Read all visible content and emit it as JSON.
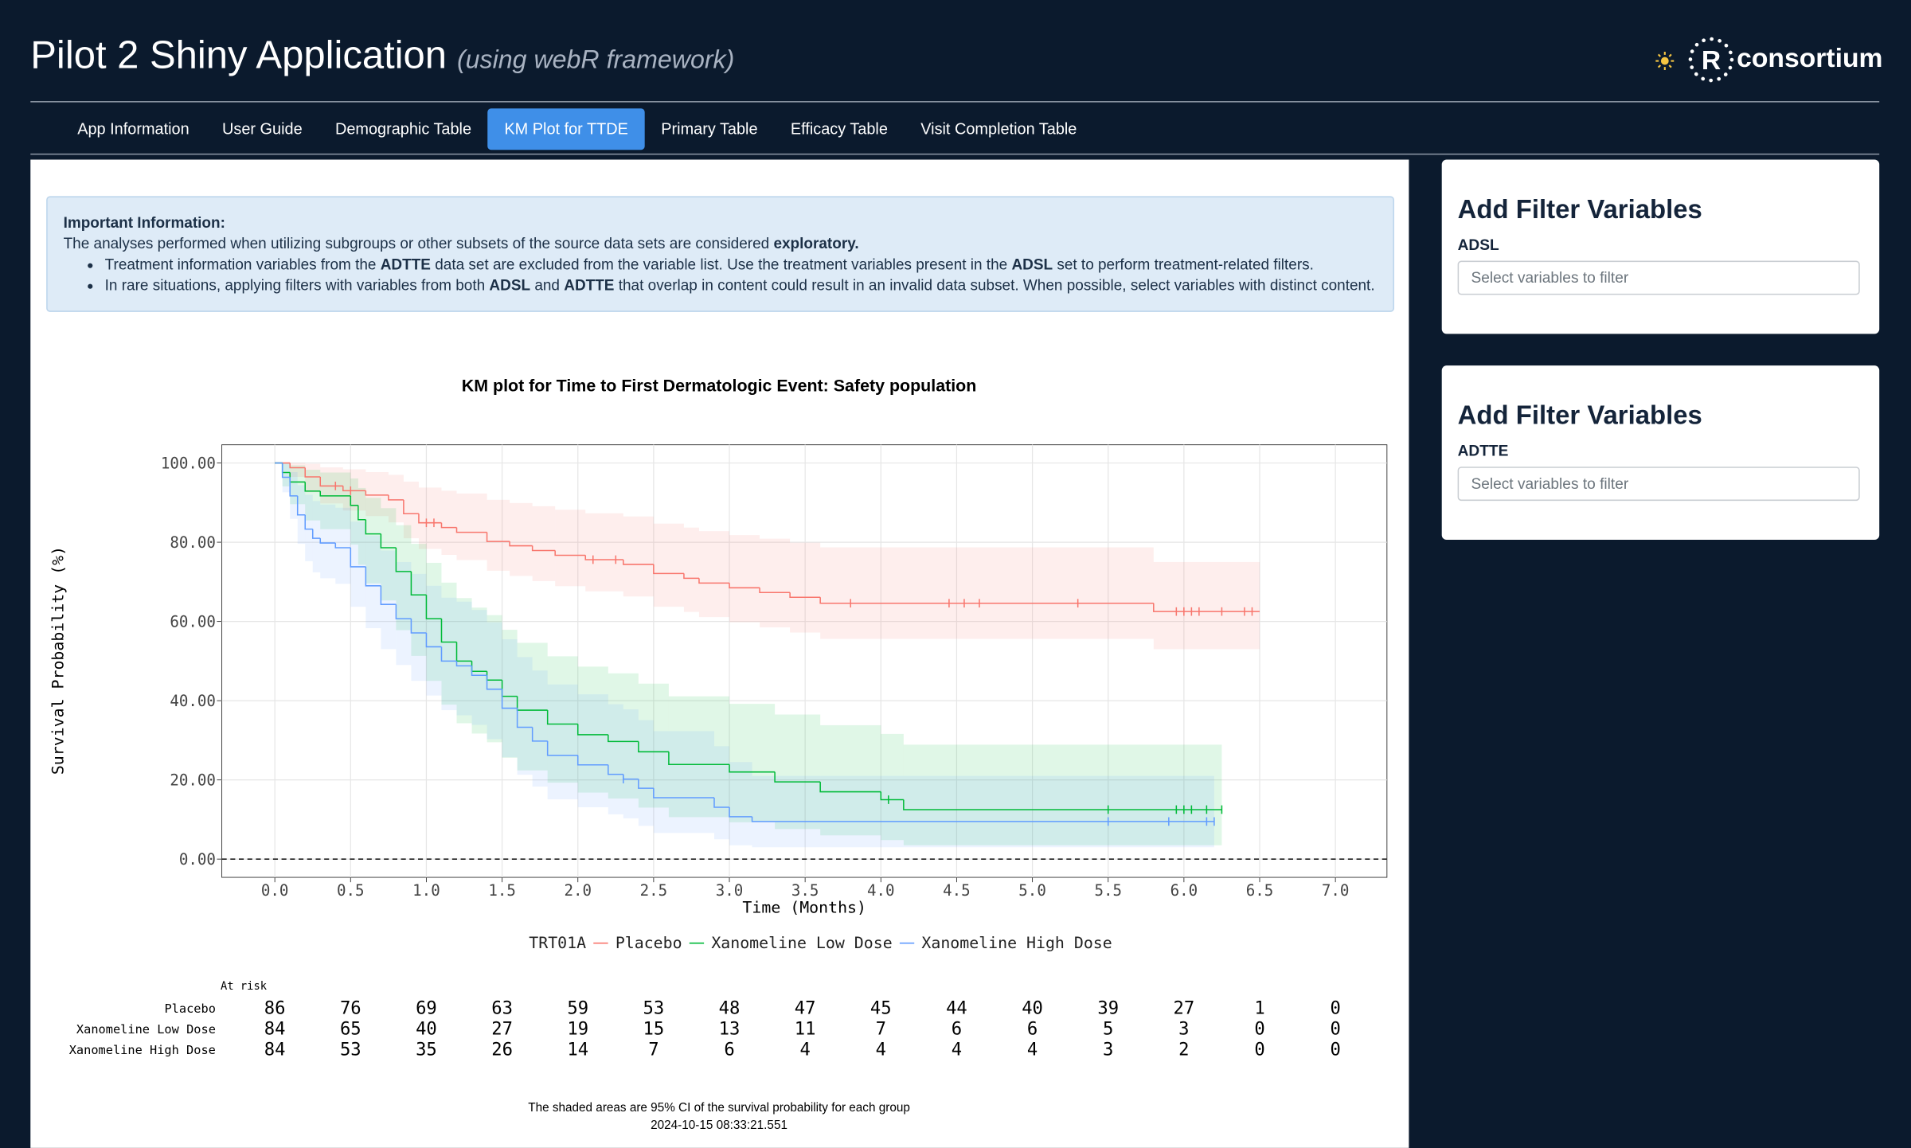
{
  "header": {
    "title": "Pilot 2 Shiny Application",
    "subtitle": "(using webR framework)",
    "logo_letter": "R",
    "logo_text": "consortium"
  },
  "nav": {
    "tabs": [
      "App Information",
      "User Guide",
      "Demographic Table",
      "KM Plot for TTDE",
      "Primary Table",
      "Efficacy Table",
      "Visit Completion Table"
    ],
    "active": 3
  },
  "info": {
    "heading": "Important Information:",
    "intro": [
      "The analyses performed when utilizing subgroups or other subsets of the source data sets are considered ",
      {
        "text": "exploratory.",
        "bold": true
      }
    ],
    "bullets": [
      [
        "Treatment information variables from the ",
        {
          "text": "ADTTE",
          "bold": true
        },
        " data set are excluded from the variable list. Use the treatment variables present in the ",
        {
          "text": "ADSL",
          "bold": true
        },
        " set to perform treatment-related filters."
      ],
      [
        "In rare situations, applying filters with variables from both ",
        {
          "text": "ADSL",
          "bold": true
        },
        " and ",
        {
          "text": "ADTTE",
          "bold": true
        },
        " that overlap in content could result in an invalid data subset. When possible, select variables with distinct content."
      ]
    ]
  },
  "chart_data": {
    "type": "km",
    "title": "KM plot for Time to First Dermatologic Event: Safety population",
    "x_label": "Time (Months)",
    "y_label": "Survival Probability (%)",
    "legend_title": "TRT01A",
    "xlim": [
      -0.35,
      7.34
    ],
    "ylim": [
      -4.6,
      104.6
    ],
    "xticks": [
      {
        "value": 0,
        "label": "0.0"
      },
      0.5,
      {
        "value": 1,
        "label": "1.0"
      },
      1.5,
      {
        "value": 2,
        "label": "2.0"
      },
      2.5,
      {
        "value": 3,
        "label": "3.0"
      },
      3.5,
      {
        "value": 4,
        "label": "4.0"
      },
      4.5,
      {
        "value": 5,
        "label": "5.0"
      },
      5.5,
      {
        "value": 6,
        "label": "6.0"
      },
      6.5,
      {
        "value": 7,
        "label": "7.0"
      }
    ],
    "yticks": [
      {
        "value": 0,
        "label": "0.00"
      },
      {
        "value": 20,
        "label": "20.00"
      },
      {
        "value": 40,
        "label": "40.00"
      },
      {
        "value": 60,
        "label": "60.00"
      },
      {
        "value": 80,
        "label": "80.00"
      },
      {
        "value": 100,
        "label": "100.00"
      }
    ],
    "grid": true,
    "hline": 0,
    "series": [
      {
        "name": "Placebo",
        "color": "#f8766d",
        "x": [
          0,
          0.1,
          0.2,
          0.3,
          0.45,
          0.6,
          0.75,
          0.85,
          0.95,
          1.1,
          1.2,
          1.4,
          1.55,
          1.7,
          1.85,
          2.05,
          2.3,
          2.5,
          2.7,
          2.8,
          3.0,
          3.2,
          3.4,
          3.6,
          5.8,
          6.5
        ],
        "values": [
          100,
          98.8,
          96.5,
          94.2,
          93,
          91.9,
          90.7,
          87.2,
          84.9,
          83.7,
          82.5,
          80.2,
          79.1,
          77.9,
          76.7,
          75.6,
          74.4,
          72.1,
          70.9,
          69.7,
          68.5,
          67.3,
          66.1,
          64.6,
          62.5,
          62.5
        ],
        "ci_upper": [
          100,
          100,
          99.8,
          98.9,
          98.4,
          97.7,
          97,
          95.3,
          93.8,
          93,
          92.3,
          90.7,
          89.9,
          89.1,
          88.2,
          87.3,
          86.5,
          84.7,
          83.7,
          82.8,
          81.8,
          80.9,
          79.9,
          78.7,
          75,
          75
        ],
        "ci_lower": [
          100,
          96.5,
          92.6,
          89.8,
          88,
          86.6,
          85,
          81,
          78.3,
          76.8,
          75.5,
          72.8,
          71.5,
          70.2,
          68.9,
          67.6,
          66.3,
          63.7,
          62.4,
          61.1,
          59.8,
          58.5,
          57.2,
          55.6,
          53,
          53
        ],
        "censor_x": [
          0.4,
          0.5,
          1.0,
          1.05,
          2.1,
          2.25,
          3.8,
          4.45,
          4.55,
          4.65,
          5.3,
          5.95,
          6.0,
          6.05,
          6.1,
          6.25,
          6.4,
          6.45
        ],
        "censor_y": [
          94.2,
          93,
          84.9,
          84.9,
          75.6,
          75.6,
          64.6,
          64.6,
          64.6,
          64.6,
          64.6,
          62.5,
          62.5,
          62.5,
          62.5,
          62.5,
          62.5,
          62.5
        ]
      },
      {
        "name": "Xanomeline Low Dose",
        "color": "#00ba38",
        "x": [
          0,
          0.05,
          0.1,
          0.2,
          0.3,
          0.5,
          0.55,
          0.6,
          0.7,
          0.8,
          0.9,
          1.0,
          1.1,
          1.2,
          1.3,
          1.4,
          1.5,
          1.6,
          1.8,
          2.0,
          2.2,
          2.4,
          2.6,
          3.0,
          3.3,
          3.6,
          4.0,
          4.15,
          6.25
        ],
        "values": [
          100,
          97.6,
          95.2,
          92.9,
          91.7,
          89.3,
          85.7,
          82.1,
          78.6,
          72.6,
          66.7,
          60.7,
          54.8,
          50,
          47.4,
          45.2,
          41.1,
          37.6,
          34.1,
          31.4,
          29.7,
          27.1,
          23.9,
          22,
          19.5,
          17,
          15,
          12.5,
          12.5
        ],
        "ci_upper": [
          100,
          100,
          99.4,
          98.3,
          97.6,
          96.1,
          93.7,
          91.2,
          88.6,
          84.3,
          79.6,
          74.8,
          69.8,
          65.9,
          63.5,
          61.6,
          57.9,
          54.6,
          51.2,
          48.6,
          46.9,
          44.3,
          41.1,
          39.2,
          36.5,
          33.8,
          31.6,
          28.9,
          25
        ],
        "ci_lower": [
          100,
          94.1,
          89.6,
          85.5,
          83.3,
          79.4,
          74.3,
          69.6,
          65.3,
          57.8,
          51.3,
          45,
          39,
          34.3,
          31.7,
          29.5,
          25.6,
          22.4,
          19.3,
          16.8,
          15.3,
          13,
          10.6,
          9.3,
          7.6,
          6,
          4.8,
          3.5,
          3.5
        ],
        "censor_x": [
          4.05,
          5.5,
          5.95,
          6.0,
          6.05,
          6.15,
          6.25
        ],
        "censor_y": [
          15,
          12.5,
          12.5,
          12.5,
          12.5,
          12.5,
          12.5
        ]
      },
      {
        "name": "Xanomeline High Dose",
        "color": "#619cff",
        "x": [
          0,
          0.05,
          0.1,
          0.15,
          0.2,
          0.25,
          0.3,
          0.4,
          0.5,
          0.6,
          0.7,
          0.8,
          0.9,
          1.0,
          1.1,
          1.2,
          1.3,
          1.4,
          1.5,
          1.6,
          1.7,
          1.8,
          2.0,
          2.2,
          2.3,
          2.4,
          2.5,
          2.9,
          3.0,
          3.15,
          6.2
        ],
        "values": [
          100,
          96.4,
          91.7,
          86.9,
          83.3,
          81,
          79.8,
          78.6,
          73.8,
          69,
          64.3,
          60.7,
          57.1,
          53.6,
          50,
          48.8,
          46.4,
          42.9,
          38.1,
          33.3,
          29.8,
          26.2,
          23.8,
          21.4,
          20.2,
          17.9,
          15.5,
          13.1,
          10.7,
          9.5,
          9.5
        ],
        "ci_upper": [
          100,
          100,
          97.7,
          94.4,
          92,
          90.4,
          89.5,
          88.7,
          85.2,
          81.7,
          77.9,
          75,
          72,
          69,
          66,
          65,
          62.9,
          59.8,
          55.5,
          51,
          47.6,
          44.1,
          41.6,
          39.1,
          37.8,
          35.1,
          32.3,
          28.5,
          24.5,
          21,
          21
        ],
        "ci_lower": [
          100,
          92.6,
          85.9,
          79.6,
          75.2,
          72.4,
          70.9,
          69.5,
          63.7,
          58.3,
          53,
          49,
          45,
          41.3,
          37.6,
          36.3,
          33.9,
          30.3,
          25.7,
          21.3,
          18.3,
          15.1,
          13.1,
          11.3,
          10.3,
          8.4,
          6.6,
          5,
          3.5,
          3,
          3
        ],
        "censor_x": [
          2.3,
          5.5,
          5.9,
          6.15,
          6.2
        ],
        "censor_y": [
          20.2,
          9.5,
          9.5,
          9.5,
          9.5
        ]
      }
    ],
    "risk_table": {
      "title": "At risk",
      "rows": [
        {
          "name": "Placebo",
          "counts": [
            86,
            76,
            69,
            63,
            59,
            53,
            48,
            47,
            45,
            44,
            40,
            39,
            27,
            1,
            0
          ]
        },
        {
          "name": "Xanomeline Low Dose",
          "counts": [
            84,
            65,
            40,
            27,
            19,
            15,
            13,
            11,
            7,
            6,
            6,
            5,
            3,
            0,
            0
          ]
        },
        {
          "name": "Xanomeline High Dose",
          "counts": [
            84,
            53,
            35,
            26,
            14,
            7,
            6,
            4,
            4,
            4,
            4,
            3,
            2,
            0,
            0
          ]
        }
      ]
    },
    "footnotes": [
      "The shaded areas are 95% CI of the survival probability for each group",
      "2024-10-15 08:33:21.551"
    ]
  },
  "filters": [
    {
      "title": "Add Filter Variables",
      "label": "ADSL",
      "placeholder": "Select variables to filter"
    },
    {
      "title": "Add Filter Variables",
      "label": "ADTTE",
      "placeholder": "Select variables to filter"
    }
  ]
}
